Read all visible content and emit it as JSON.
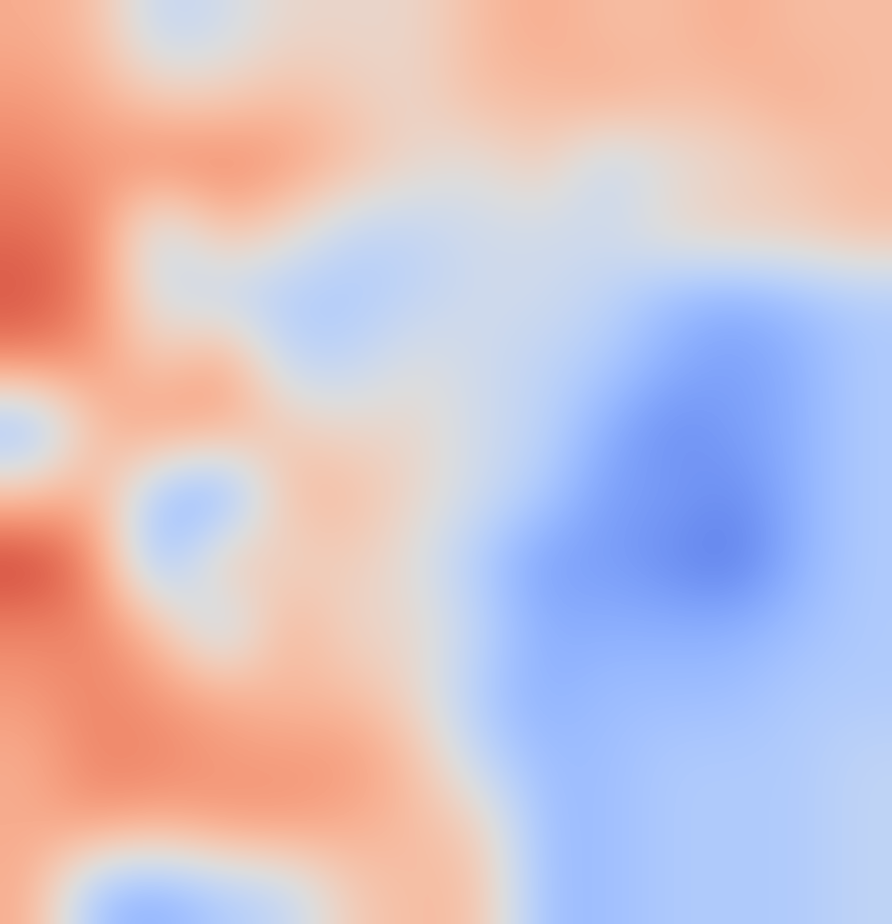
{
  "chart_data": {
    "type": "heatmap",
    "color": "coolwarm",
    "tick_labels": false,
    "grid": false,
    "color_range": [
      -1,
      1
    ],
    "cells": [
      [
        0.4,
        0.3,
        -0.2,
        -0.1,
        0.1,
        0.1,
        0.1,
        0.3,
        0.4,
        0.3,
        0.3,
        0.4,
        0.3,
        0.3
      ],
      [
        0.5,
        0.4,
        0.2,
        0.2,
        0.3,
        0.2,
        0.1,
        0.3,
        0.3,
        0.4,
        0.3,
        0.3,
        0.4,
        0.3
      ],
      [
        0.6,
        0.5,
        0.6,
        0.6,
        0.5,
        0.3,
        0.1,
        0.0,
        0.2,
        -0.2,
        0.0,
        0.1,
        0.2,
        0.3
      ],
      [
        0.7,
        0.6,
        -0.2,
        0.3,
        0.1,
        -0.2,
        -0.2,
        -0.1,
        -0.1,
        -0.1,
        0.1,
        0.2,
        0.2,
        0.3
      ],
      [
        0.8,
        0.6,
        -0.1,
        -0.2,
        -0.3,
        -0.3,
        -0.2,
        -0.1,
        -0.1,
        -0.2,
        -0.4,
        -0.5,
        -0.4,
        -0.3
      ],
      [
        0.6,
        0.5,
        0.2,
        0.5,
        -0.2,
        -0.2,
        0.0,
        -0.1,
        -0.2,
        -0.3,
        -0.5,
        -0.6,
        -0.5,
        -0.3
      ],
      [
        -0.5,
        0.3,
        0.5,
        0.4,
        0.2,
        0.1,
        0.1,
        -0.1,
        -0.2,
        -0.5,
        -0.7,
        -0.6,
        -0.5,
        -0.3
      ],
      [
        0.3,
        0.4,
        -0.4,
        -0.6,
        0.3,
        0.3,
        0.1,
        -0.1,
        -0.3,
        -0.6,
        -0.6,
        -0.7,
        -0.5,
        -0.3
      ],
      [
        0.9,
        0.6,
        -0.5,
        0.3,
        0.1,
        0.2,
        0.0,
        -0.3,
        -0.6,
        -0.6,
        -0.7,
        -0.8,
        -0.5,
        -0.3
      ],
      [
        0.6,
        0.6,
        0.3,
        -0.3,
        0.4,
        0.1,
        0.1,
        -0.2,
        -0.5,
        -0.5,
        -0.5,
        -0.5,
        -0.4,
        -0.3
      ],
      [
        0.5,
        0.6,
        0.5,
        0.4,
        0.3,
        0.3,
        0.1,
        -0.3,
        -0.5,
        -0.4,
        -0.4,
        -0.4,
        -0.3,
        -0.3
      ],
      [
        0.4,
        0.6,
        0.6,
        0.5,
        0.5,
        0.5,
        0.3,
        -0.2,
        -0.4,
        -0.4,
        -0.3,
        -0.3,
        -0.3,
        -0.2
      ],
      [
        0.4,
        0.5,
        0.4,
        0.5,
        0.5,
        0.4,
        0.3,
        0.2,
        -0.4,
        -0.4,
        -0.3,
        -0.3,
        -0.3,
        -0.2
      ],
      [
        0.4,
        -0.4,
        -0.5,
        -0.3,
        -0.2,
        0.2,
        0.3,
        0.3,
        -0.4,
        -0.4,
        -0.3,
        -0.3,
        -0.3,
        -0.2
      ]
    ]
  }
}
